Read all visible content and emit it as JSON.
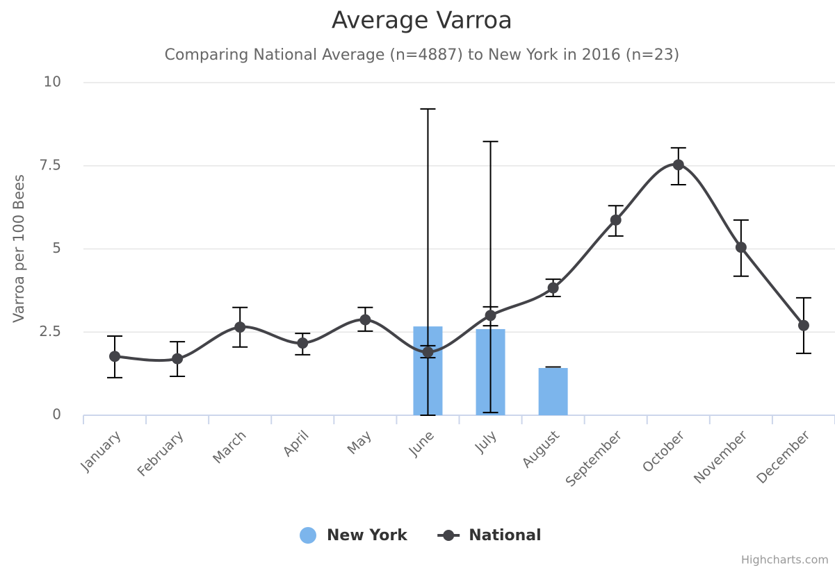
{
  "chart_data": {
    "type": "combo",
    "title": "Average Varroa",
    "subtitle": "Comparing National Average (n=4887) to New York in 2016 (n=23)",
    "y_label": "Varroa per 100 Bees",
    "credit": "Highcharts.com",
    "categories": [
      "January",
      "February",
      "March",
      "April",
      "May",
      "June",
      "July",
      "August",
      "September",
      "October",
      "November",
      "December"
    ],
    "ylim": [
      0,
      10
    ],
    "yticks": [
      0,
      2.5,
      5,
      7.5,
      10
    ],
    "grid": true,
    "legend": "bottom",
    "series": [
      {
        "name": "New York",
        "type": "bar",
        "color": "#7cb5ec",
        "values": [
          null,
          null,
          null,
          null,
          null,
          2.67,
          2.59,
          1.42,
          null,
          null,
          null,
          null
        ],
        "low": [
          null,
          null,
          null,
          null,
          null,
          0,
          0.08,
          1.45,
          null,
          null,
          null,
          null
        ],
        "high": [
          null,
          null,
          null,
          null,
          null,
          9.21,
          8.23,
          1.45,
          null,
          null,
          null,
          null
        ]
      },
      {
        "name": "National",
        "type": "spline",
        "color": "#434348",
        "values": [
          1.77,
          1.7,
          2.65,
          2.17,
          2.87,
          1.9,
          3.0,
          3.83,
          5.87,
          7.53,
          5.05,
          2.7
        ],
        "low": [
          1.13,
          1.17,
          2.05,
          1.82,
          2.53,
          1.73,
          2.69,
          3.57,
          5.39,
          6.93,
          4.18,
          1.86
        ],
        "high": [
          2.38,
          2.21,
          3.24,
          2.46,
          3.24,
          2.09,
          3.26,
          4.09,
          6.3,
          8.04,
          5.87,
          3.53
        ]
      }
    ]
  }
}
